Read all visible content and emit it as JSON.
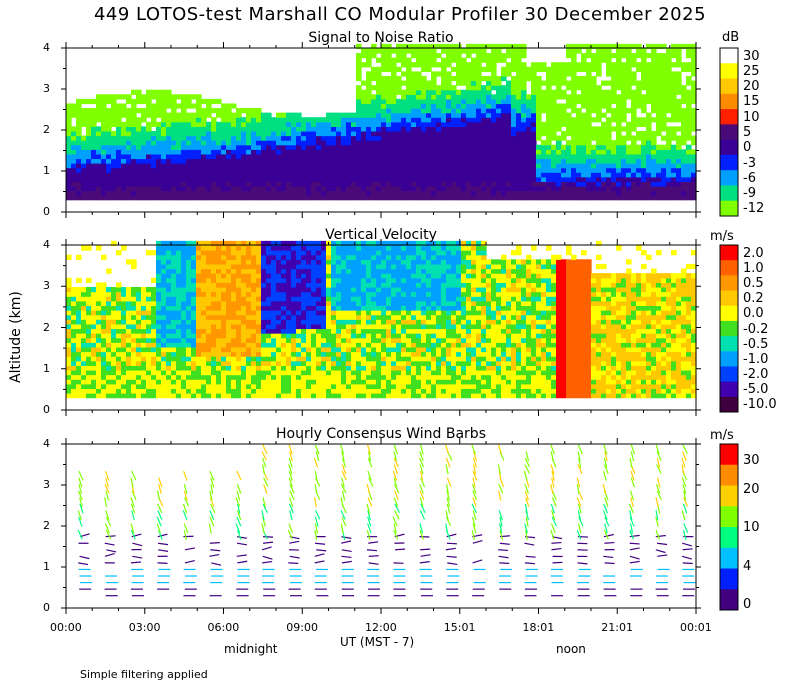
{
  "title": "449 LOTOS-test Marshall CO Modular Profiler 30 December 2025",
  "y_axis_label": "Altitude (km)",
  "x_axis_label": "UT  (MST - 7)",
  "midnight_label": "midnight",
  "noon_label": "noon",
  "footer_note": "Simple filtering applied",
  "x_ticks": [
    "00:00",
    "03:00",
    "06:00",
    "09:00",
    "12:00",
    "15:01",
    "18:01",
    "21:01",
    "00:01"
  ],
  "y_ticks": [
    "0",
    "1",
    "2",
    "3",
    "4"
  ],
  "chart_data": [
    {
      "type": "heatmap",
      "title": "Signal to Noise Ratio",
      "unit": "dB",
      "x": "time UT (hours 0-24)",
      "y": "altitude km (0-4)",
      "ylim": [
        0,
        4
      ],
      "colorbar_labels": [
        "30",
        "25",
        "20",
        "15",
        "10",
        "5",
        "0",
        "-3",
        "-6",
        "-9",
        "-12"
      ],
      "colors": [
        "#ffffff",
        "#ffff00",
        "#ffc800",
        "#ff8c00",
        "#ff2000",
        "#4a0b78",
        "#3a0096",
        "#0020ff",
        "#00a0ff",
        "#00e080",
        "#80ff00"
      ]
    },
    {
      "type": "heatmap",
      "title": "Vertical Velocity",
      "unit": "m/s",
      "x": "time UT (hours 0-24)",
      "y": "altitude km (0-4)",
      "ylim": [
        0,
        4
      ],
      "colorbar_labels": [
        "2.0",
        "1.0",
        "0.5",
        "0.2",
        "0.0",
        "-0.2",
        "-0.5",
        "-1.0",
        "-2.0",
        "-5.0",
        "-10.0"
      ],
      "colors": [
        "#ff0000",
        "#ff6000",
        "#ff9800",
        "#ffc800",
        "#ffff00",
        "#40e020",
        "#00e0b0",
        "#00a0ff",
        "#0040ff",
        "#4000b0",
        "#400040"
      ]
    },
    {
      "type": "scatter",
      "title": "Hourly Consensus Wind Barbs",
      "unit": "m/s",
      "x": "time UT (hours 0-24)",
      "y": "altitude km (0-4)",
      "ylim": [
        0,
        4
      ],
      "colorbar_labels": [
        "30",
        "20",
        "10",
        "4",
        "0"
      ],
      "colors": [
        "#ff0000",
        "#ff8c00",
        "#ffd000",
        "#80ff00",
        "#00ff80",
        "#00c0ff",
        "#0020ff",
        "#400080"
      ]
    }
  ]
}
